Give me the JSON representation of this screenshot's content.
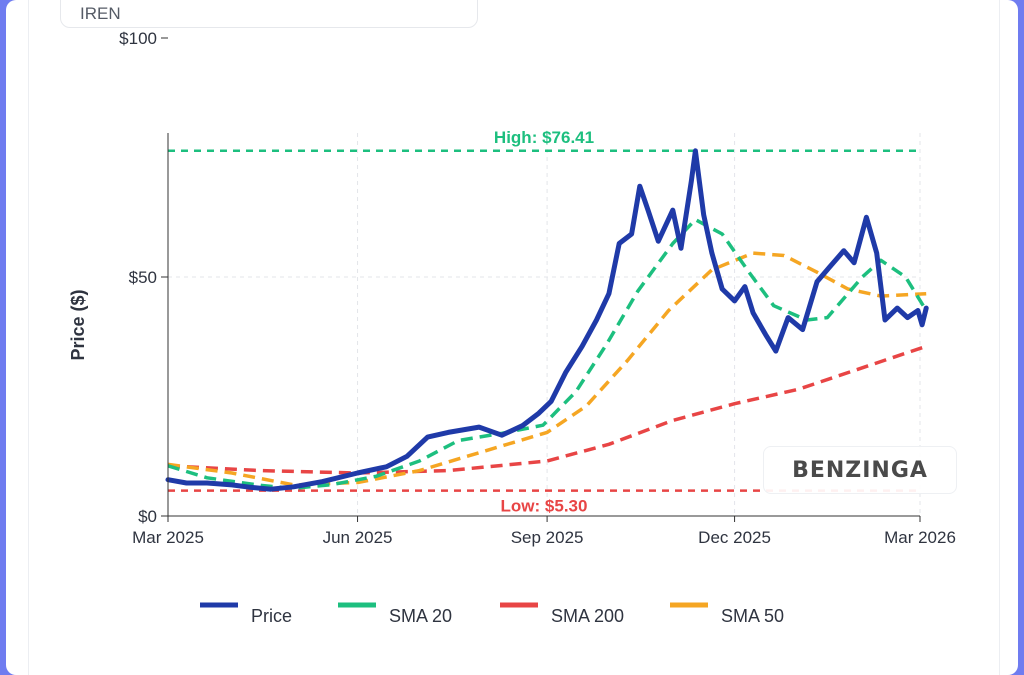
{
  "ticker": "IREN",
  "watermark": "BENZINGA",
  "colors": {
    "price": "#1f3aa8",
    "sma20": "#1dbf7f",
    "sma200": "#e84545",
    "sma50": "#f5a623",
    "grid": "#e3e5ea"
  },
  "chart_data": {
    "type": "line",
    "xlabel": "",
    "ylabel": "Price ($)",
    "ylim": [
      0,
      100
    ],
    "yticks": [
      {
        "value": 0,
        "label": "$0"
      },
      {
        "value": 50,
        "label": "$50"
      },
      {
        "value": 100,
        "label": "$100"
      }
    ],
    "xticks": [
      {
        "date": "2025-03-01",
        "label": "Mar 2025"
      },
      {
        "date": "2025-06-01",
        "label": "Jun 2025"
      },
      {
        "date": "2025-09-01",
        "label": "Sep 2025"
      },
      {
        "date": "2025-12-01",
        "label": "Dec 2025"
      },
      {
        "date": "2026-03-01",
        "label": "Mar 2026"
      }
    ],
    "xrange": [
      "2025-03-01",
      "2026-03-04"
    ],
    "grid": true,
    "legend_placement": "bottom",
    "annotations": [
      {
        "name": "high",
        "label": "High: $76.41",
        "value": 76.41
      },
      {
        "name": "low",
        "label": "Low: $5.30",
        "value": 5.3
      }
    ],
    "series": [
      {
        "name": "Price",
        "key": "price",
        "points": [
          [
            "2025-03-01",
            7.6
          ],
          [
            "2025-03-10",
            6.9
          ],
          [
            "2025-03-20",
            6.9
          ],
          [
            "2025-04-01",
            6.5
          ],
          [
            "2025-04-10",
            6.0
          ],
          [
            "2025-04-20",
            5.6
          ],
          [
            "2025-05-01",
            6.1
          ],
          [
            "2025-05-15",
            7.2
          ],
          [
            "2025-06-01",
            9.0
          ],
          [
            "2025-06-15",
            10.3
          ],
          [
            "2025-06-25",
            12.5
          ],
          [
            "2025-07-05",
            16.5
          ],
          [
            "2025-07-15",
            17.5
          ],
          [
            "2025-07-30",
            18.6
          ],
          [
            "2025-08-10",
            16.9
          ],
          [
            "2025-08-20",
            18.9
          ],
          [
            "2025-08-28",
            21.5
          ],
          [
            "2025-09-03",
            24.0
          ],
          [
            "2025-09-10",
            30.0
          ],
          [
            "2025-09-18",
            35.5
          ],
          [
            "2025-09-25",
            41.0
          ],
          [
            "2025-10-01",
            46.5
          ],
          [
            "2025-10-06",
            57.0
          ],
          [
            "2025-10-12",
            59.0
          ],
          [
            "2025-10-16",
            69.0
          ],
          [
            "2025-10-20",
            64.0
          ],
          [
            "2025-10-25",
            57.5
          ],
          [
            "2025-11-01",
            64.0
          ],
          [
            "2025-11-05",
            56.0
          ],
          [
            "2025-11-10",
            70.0
          ],
          [
            "2025-11-12",
            76.41
          ],
          [
            "2025-11-16",
            63.0
          ],
          [
            "2025-11-20",
            55.0
          ],
          [
            "2025-11-25",
            47.5
          ],
          [
            "2025-12-01",
            45.0
          ],
          [
            "2025-12-06",
            48.0
          ],
          [
            "2025-12-10",
            42.5
          ],
          [
            "2025-12-16",
            38.0
          ],
          [
            "2025-12-21",
            34.5
          ],
          [
            "2025-12-27",
            41.5
          ],
          [
            "2026-01-03",
            39.0
          ],
          [
            "2026-01-10",
            49.0
          ],
          [
            "2026-01-16",
            52.0
          ],
          [
            "2026-01-23",
            55.5
          ],
          [
            "2026-01-28",
            53.0
          ],
          [
            "2026-02-03",
            62.5
          ],
          [
            "2026-02-08",
            55.0
          ],
          [
            "2026-02-12",
            41.0
          ],
          [
            "2026-02-18",
            43.5
          ],
          [
            "2026-02-23",
            41.5
          ],
          [
            "2026-02-28",
            43.0
          ],
          [
            "2026-03-02",
            40.0
          ],
          [
            "2026-03-04",
            43.5
          ]
        ]
      },
      {
        "name": "SMA 20",
        "key": "sma20",
        "points": [
          [
            "2025-03-01",
            10.5
          ],
          [
            "2025-03-20",
            8.0
          ],
          [
            "2025-04-15",
            6.4
          ],
          [
            "2025-05-01",
            5.8
          ],
          [
            "2025-05-20",
            6.6
          ],
          [
            "2025-06-10",
            8.3
          ],
          [
            "2025-07-01",
            11.5
          ],
          [
            "2025-07-20",
            15.8
          ],
          [
            "2025-08-10",
            17.3
          ],
          [
            "2025-08-30",
            19.0
          ],
          [
            "2025-09-15",
            26.0
          ],
          [
            "2025-09-30",
            36.0
          ],
          [
            "2025-10-15",
            47.0
          ],
          [
            "2025-11-01",
            57.0
          ],
          [
            "2025-11-12",
            62.0
          ],
          [
            "2025-11-25",
            59.0
          ],
          [
            "2025-12-08",
            51.0
          ],
          [
            "2025-12-20",
            44.0
          ],
          [
            "2026-01-05",
            41.0
          ],
          [
            "2026-01-15",
            41.5
          ],
          [
            "2026-02-01",
            50.0
          ],
          [
            "2026-02-10",
            53.5
          ],
          [
            "2026-02-22",
            50.0
          ],
          [
            "2026-03-04",
            43.0
          ]
        ]
      },
      {
        "name": "SMA 200",
        "key": "sma200",
        "points": [
          [
            "2025-03-01",
            10.5
          ],
          [
            "2025-04-15",
            9.5
          ],
          [
            "2025-06-01",
            9.0
          ],
          [
            "2025-07-15",
            9.5
          ],
          [
            "2025-09-01",
            11.5
          ],
          [
            "2025-10-01",
            15.0
          ],
          [
            "2025-11-01",
            20.0
          ],
          [
            "2025-12-01",
            23.5
          ],
          [
            "2026-01-01",
            26.5
          ],
          [
            "2026-02-01",
            31.0
          ],
          [
            "2026-03-04",
            35.5
          ]
        ]
      },
      {
        "name": "SMA 50",
        "key": "sma50",
        "points": [
          [
            "2025-03-01",
            10.8
          ],
          [
            "2025-04-01",
            9.0
          ],
          [
            "2025-05-01",
            6.5
          ],
          [
            "2025-06-01",
            7.0
          ],
          [
            "2025-07-01",
            9.5
          ],
          [
            "2025-08-01",
            13.5
          ],
          [
            "2025-09-01",
            17.5
          ],
          [
            "2025-09-20",
            23.0
          ],
          [
            "2025-10-10",
            32.5
          ],
          [
            "2025-10-30",
            43.0
          ],
          [
            "2025-11-20",
            51.5
          ],
          [
            "2025-12-10",
            55.0
          ],
          [
            "2025-12-25",
            54.5
          ],
          [
            "2026-01-10",
            51.0
          ],
          [
            "2026-01-25",
            47.5
          ],
          [
            "2026-02-10",
            46.0
          ],
          [
            "2026-03-04",
            46.5
          ]
        ]
      }
    ]
  }
}
